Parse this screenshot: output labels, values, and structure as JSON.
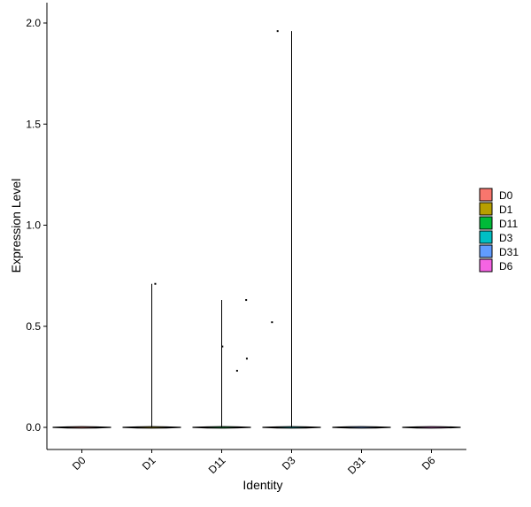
{
  "chart_data": {
    "type": "violin",
    "xlabel": "Identity",
    "ylabel": "Expression Level",
    "categories": [
      "D0",
      "D1",
      "D11",
      "D3",
      "D31",
      "D6"
    ],
    "ylim": [
      -0.1,
      2.06
    ],
    "yticks": [
      0.0,
      0.5,
      1.0,
      1.5,
      2.0
    ],
    "ytick_labels": [
      "0.0",
      "0.5",
      "1.0",
      "1.5",
      "2.0"
    ],
    "grid": false,
    "legend_position": "right",
    "series": [
      {
        "name": "D0",
        "color": "#F8766D",
        "violin_max": 0.0,
        "points": []
      },
      {
        "name": "D1",
        "color": "#B79F00",
        "violin_max": 0.71,
        "points": [
          [
            0.05,
            0.71
          ]
        ]
      },
      {
        "name": "D11",
        "color": "#00BA38",
        "violin_max": 0.63,
        "points": [
          [
            0.01,
            0.4
          ],
          [
            0.35,
            0.63
          ],
          [
            0.22,
            0.28
          ],
          [
            0.36,
            0.34
          ]
        ]
      },
      {
        "name": "D3",
        "color": "#00BFC4",
        "violin_max": 1.96,
        "points": [
          [
            -0.2,
            1.96
          ],
          [
            -0.28,
            0.52
          ]
        ]
      },
      {
        "name": "D31",
        "color": "#619CFF",
        "violin_max": 0.0,
        "points": []
      },
      {
        "name": "D6",
        "color": "#F564E3",
        "violin_max": 0.0,
        "points": []
      }
    ]
  }
}
